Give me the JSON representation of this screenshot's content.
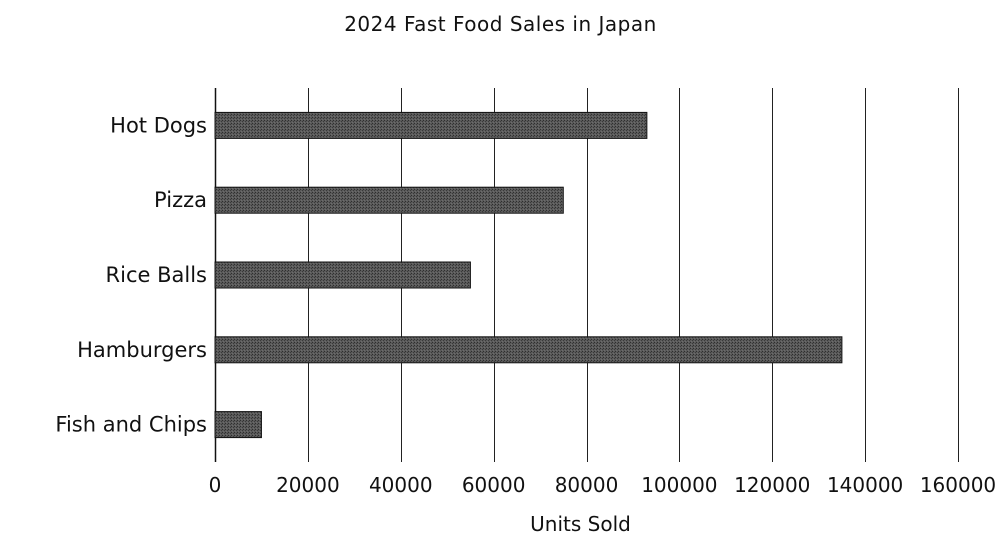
{
  "chart_data": {
    "type": "bar",
    "orientation": "horizontal",
    "title": "2024 Fast Food Sales in Japan",
    "xlabel": "Units Sold",
    "ylabel": "",
    "categories": [
      "Hot Dogs",
      "Pizza",
      "Rice Balls",
      "Hamburgers",
      "Fish and Chips"
    ],
    "values": [
      93000,
      75000,
      55000,
      135000,
      10000
    ],
    "xlim": [
      0,
      160000
    ],
    "xticks": [
      0,
      20000,
      40000,
      60000,
      80000,
      100000,
      120000,
      140000,
      160000
    ],
    "xtick_labels": [
      "0",
      "20000",
      "40000",
      "60000",
      "80000",
      "100000",
      "120000",
      "140000",
      "160000"
    ],
    "grid": "vertical",
    "legend": "none",
    "colors": {
      "bar": "#4a4a4a",
      "bar_edge": "#111111",
      "grid": "#222222",
      "axis": "#111111"
    }
  }
}
